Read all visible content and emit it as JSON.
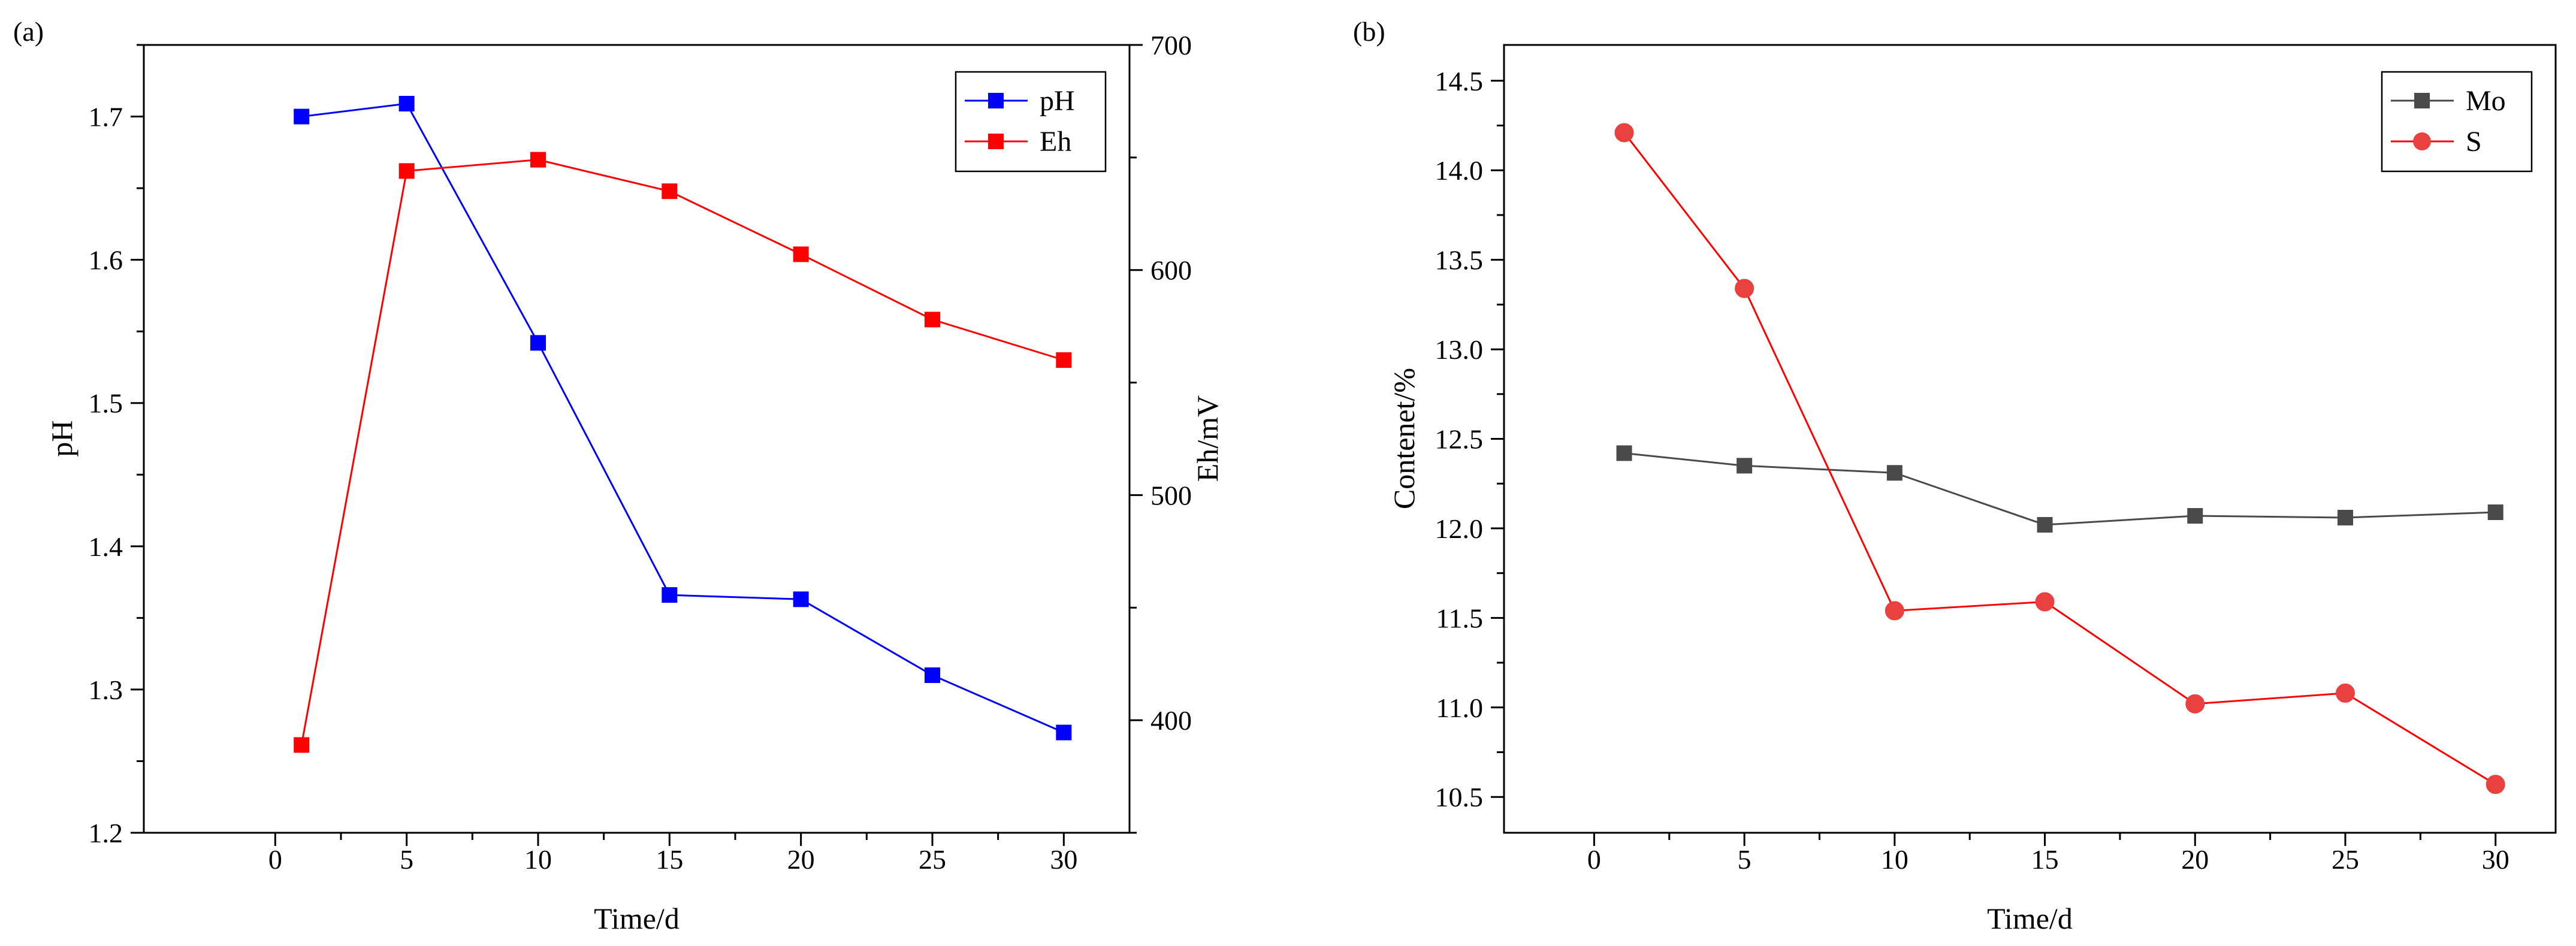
{
  "chart_data": [
    {
      "type": "line",
      "panel_label": "(a)",
      "title": "",
      "xlabel": "Time/d",
      "ylabel": "pH",
      "y2label": "Eh/mV",
      "xlim": [
        -5,
        32.5
      ],
      "ylim": [
        1.2,
        1.75
      ],
      "y2lim": [
        350,
        700
      ],
      "xticks": [
        0,
        5,
        10,
        15,
        20,
        25,
        30
      ],
      "yticks": [
        1.2,
        1.3,
        1.4,
        1.5,
        1.6,
        1.7
      ],
      "ytick_labels": [
        "1.2",
        "1.3",
        "1.4",
        "1.5",
        "1.6",
        "1.7"
      ],
      "y2ticks": [
        400,
        500,
        600,
        700
      ],
      "grid": false,
      "legend_position": "top-right",
      "x": [
        1,
        5,
        10,
        15,
        20,
        25,
        30
      ],
      "series": [
        {
          "name": "pH",
          "axis": "left",
          "color": "#0000ff",
          "marker": "square",
          "values": [
            1.7,
            1.709,
            1.542,
            1.366,
            1.363,
            1.31,
            1.27
          ]
        },
        {
          "name": "Eh",
          "axis": "right",
          "color": "#ff0000",
          "marker": "square",
          "values": [
            389,
            644,
            649,
            635,
            607,
            578,
            560
          ]
        }
      ]
    },
    {
      "type": "line",
      "panel_label": "(b)",
      "title": "",
      "xlabel": "Time/d",
      "ylabel": "Contenet/%",
      "xlim": [
        -3,
        32
      ],
      "ylim": [
        10.3,
        14.7
      ],
      "xticks": [
        0,
        5,
        10,
        15,
        20,
        25,
        30
      ],
      "yticks": [
        10.5,
        11.0,
        11.5,
        12.0,
        12.5,
        13.0,
        13.5,
        14.0,
        14.5
      ],
      "ytick_labels": [
        "10.5",
        "11.0",
        "11.5",
        "12.0",
        "12.5",
        "13.0",
        "13.5",
        "14.0",
        "14.5"
      ],
      "grid": false,
      "legend_position": "top-right",
      "x": [
        1,
        5,
        10,
        15,
        20,
        25,
        30
      ],
      "series": [
        {
          "name": "Mo",
          "color": "#4a4a4a",
          "marker": "square",
          "values": [
            12.42,
            12.35,
            12.31,
            12.02,
            12.07,
            12.06,
            12.09
          ]
        },
        {
          "name": "S",
          "color": "#ff0000",
          "marker_color": "#e94040",
          "marker": "circle",
          "values": [
            14.21,
            13.34,
            11.54,
            11.59,
            11.02,
            11.08,
            10.57
          ]
        }
      ]
    }
  ]
}
